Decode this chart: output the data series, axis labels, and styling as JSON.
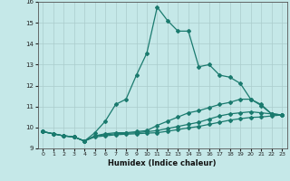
{
  "xlabel": "Humidex (Indice chaleur)",
  "xlim": [
    -0.5,
    23.5
  ],
  "ylim": [
    9,
    16
  ],
  "yticks": [
    9,
    10,
    11,
    12,
    13,
    14,
    15,
    16
  ],
  "xticks": [
    0,
    1,
    2,
    3,
    4,
    5,
    6,
    7,
    8,
    9,
    10,
    11,
    12,
    13,
    14,
    15,
    16,
    17,
    18,
    19,
    20,
    21,
    22,
    23
  ],
  "bg_color": "#c5e8e8",
  "line_color": "#1a7a6e",
  "grid_color": "#aacccc",
  "lines": [
    {
      "x": [
        0,
        1,
        2,
        3,
        4,
        5,
        6,
        7,
        8,
        9,
        10,
        11,
        12,
        13,
        14,
        15,
        16,
        17,
        18,
        19,
        20,
        21,
        22,
        23
      ],
      "y": [
        9.8,
        9.7,
        9.6,
        9.55,
        9.35,
        9.75,
        10.3,
        11.1,
        11.35,
        12.5,
        13.55,
        15.75,
        15.1,
        14.6,
        14.6,
        12.9,
        13.0,
        12.5,
        12.4,
        12.1,
        11.35,
        11.05,
        10.65,
        10.6
      ]
    },
    {
      "x": [
        0,
        1,
        2,
        3,
        4,
        5,
        6,
        7,
        8,
        9,
        10,
        11,
        12,
        13,
        14,
        15,
        16,
        17,
        18,
        19,
        20,
        21,
        22,
        23
      ],
      "y": [
        9.8,
        9.7,
        9.6,
        9.55,
        9.35,
        9.6,
        9.7,
        9.75,
        9.75,
        9.8,
        9.85,
        10.1,
        10.3,
        10.5,
        10.7,
        10.8,
        10.95,
        11.1,
        11.2,
        11.35,
        11.35,
        11.1,
        10.65,
        10.6
      ]
    },
    {
      "x": [
        0,
        1,
        2,
        3,
        4,
        5,
        6,
        7,
        8,
        9,
        10,
        11,
        12,
        13,
        14,
        15,
        16,
        17,
        18,
        19,
        20,
        21,
        22,
        23
      ],
      "y": [
        9.8,
        9.7,
        9.6,
        9.55,
        9.35,
        9.6,
        9.65,
        9.7,
        9.72,
        9.75,
        9.8,
        9.85,
        9.95,
        10.05,
        10.15,
        10.25,
        10.4,
        10.55,
        10.65,
        10.7,
        10.75,
        10.7,
        10.65,
        10.6
      ]
    },
    {
      "x": [
        0,
        1,
        2,
        3,
        4,
        5,
        6,
        7,
        8,
        9,
        10,
        11,
        12,
        13,
        14,
        15,
        16,
        17,
        18,
        19,
        20,
        21,
        22,
        23
      ],
      "y": [
        9.8,
        9.7,
        9.6,
        9.55,
        9.35,
        9.55,
        9.6,
        9.65,
        9.68,
        9.7,
        9.73,
        9.75,
        9.82,
        9.9,
        9.98,
        10.05,
        10.15,
        10.25,
        10.35,
        10.42,
        10.48,
        10.5,
        10.55,
        10.6
      ]
    }
  ],
  "marker": "D",
  "markersize": 2.0,
  "linewidth": 0.9
}
